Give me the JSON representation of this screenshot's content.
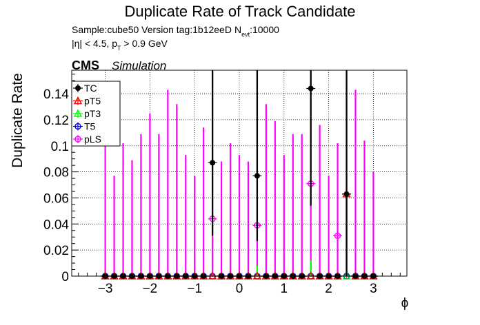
{
  "chart_data": {
    "type": "scatter",
    "title": "Duplicate Rate of Track Candidate",
    "info": {
      "sample_line": "Sample:cube50   Version tag:1b12eeD",
      "nevt_label": "N",
      "nevt_sub": "evt",
      "nevt_value": ":10000",
      "cuts_prefix": "|η| < 4.5, p",
      "cuts_sub": "T",
      "cuts_suffix": " > 0.9 GeV"
    },
    "experiment": "CMS",
    "experiment_tag": "Simulation",
    "xlabel": "ϕ",
    "ylabel": "Duplicate Rate",
    "xlim": [
      -3.75,
      3.75
    ],
    "ylim": [
      0,
      0.158
    ],
    "xticks": [
      {
        "v": -3,
        "label": "−3"
      },
      {
        "v": -2,
        "label": "−2"
      },
      {
        "v": -1,
        "label": "−1"
      },
      {
        "v": 0,
        "label": "0"
      },
      {
        "v": 1,
        "label": "1"
      },
      {
        "v": 2,
        "label": "2"
      },
      {
        "v": 3,
        "label": "3"
      }
    ],
    "yticks": [
      {
        "v": 0,
        "label": "0"
      },
      {
        "v": 0.02,
        "label": "0.02"
      },
      {
        "v": 0.04,
        "label": "0.04"
      },
      {
        "v": 0.06,
        "label": "0.06"
      },
      {
        "v": 0.08,
        "label": "0.08"
      },
      {
        "v": 0.1,
        "label": "0.1"
      },
      {
        "v": 0.12,
        "label": "0.12"
      },
      {
        "v": 0.14,
        "label": "0.14"
      }
    ],
    "grid": true,
    "legend_position": "top-left",
    "bin_centers": [
      -3.0,
      -2.8,
      -2.6,
      -2.4,
      -2.2,
      -2.0,
      -1.8,
      -1.6,
      -1.4,
      -1.2,
      -1.0,
      -0.8,
      -0.6,
      -0.4,
      -0.2,
      0.0,
      0.2,
      0.4,
      0.6,
      0.8,
      1.0,
      1.2,
      1.4,
      1.6,
      1.8,
      2.0,
      2.2,
      2.4,
      2.6,
      2.8,
      3.0
    ],
    "series": [
      {
        "name": "TC",
        "color": "#000000",
        "marker": "filled-circle",
        "values": [
          0,
          0,
          0,
          0,
          0,
          0,
          0,
          0,
          0,
          0,
          0,
          0,
          0.087,
          0,
          0,
          0,
          0,
          0.077,
          0,
          0,
          0,
          0,
          0,
          0.144,
          0,
          0,
          0,
          0.063,
          0,
          0,
          0
        ],
        "err_up": [
          0,
          0,
          0,
          0,
          0,
          0,
          0,
          0,
          0,
          0,
          0,
          0,
          0.08,
          0,
          0,
          0,
          0,
          0.09,
          0,
          0,
          0,
          0,
          0,
          0.03,
          0,
          0,
          0,
          0.1,
          0,
          0,
          0
        ],
        "err_down": [
          0,
          0,
          0,
          0,
          0,
          0,
          0,
          0,
          0,
          0,
          0,
          0,
          0.056,
          0,
          0,
          0,
          0,
          0.05,
          0,
          0,
          0,
          0,
          0,
          0.09,
          0,
          0,
          0,
          0.063,
          0,
          0,
          0
        ]
      },
      {
        "name": "pT5",
        "color": "#ff0000",
        "marker": "open-triangle",
        "values": [
          0,
          0,
          0,
          0,
          0,
          0,
          0,
          0,
          0,
          0,
          0,
          0,
          0,
          0,
          0,
          0,
          0,
          0,
          0,
          0,
          0,
          0,
          0,
          0,
          0,
          0,
          0,
          0.063,
          0,
          0,
          0
        ],
        "err_up": [
          0,
          0,
          0,
          0,
          0,
          0,
          0,
          0,
          0,
          0,
          0,
          0,
          0,
          0,
          0,
          0,
          0,
          0,
          0,
          0,
          0,
          0,
          0,
          0,
          0,
          0,
          0,
          0.1,
          0,
          0,
          0
        ],
        "err_down": [
          0,
          0,
          0,
          0,
          0,
          0,
          0,
          0,
          0,
          0,
          0,
          0,
          0,
          0,
          0,
          0,
          0,
          0,
          0,
          0,
          0,
          0,
          0,
          0,
          0,
          0,
          0,
          0.063,
          0,
          0,
          0
        ]
      },
      {
        "name": "pT3",
        "color": "#00ff00",
        "marker": "open-triangle",
        "values": [
          0,
          0,
          0,
          0,
          0,
          0,
          0,
          0,
          0,
          0,
          0,
          0,
          0,
          0,
          0,
          0,
          0,
          0,
          0,
          0,
          0,
          0,
          0,
          0,
          0,
          0,
          0,
          0,
          0,
          0,
          0
        ],
        "err_up": [
          0,
          0,
          0,
          0,
          0,
          0,
          0,
          0,
          0,
          0,
          0,
          0,
          0,
          0,
          0,
          0,
          0,
          0.008,
          0,
          0,
          0,
          0,
          0,
          0.012,
          0,
          0,
          0,
          0,
          0,
          0,
          0
        ],
        "err_down": [
          0,
          0,
          0,
          0,
          0,
          0,
          0,
          0,
          0,
          0,
          0,
          0,
          0,
          0,
          0,
          0,
          0,
          0,
          0,
          0,
          0,
          0,
          0,
          0,
          0,
          0,
          0,
          0,
          0,
          0,
          0
        ]
      },
      {
        "name": "T5",
        "color": "#0000ff",
        "marker": "open-circle",
        "values": [
          0,
          0,
          0,
          0,
          0,
          0,
          0,
          0,
          0,
          0,
          0,
          0,
          0,
          0,
          0,
          0,
          0,
          0,
          0,
          0,
          0,
          0,
          0,
          0,
          0,
          0,
          0,
          0,
          0,
          0,
          0
        ],
        "err_up": [
          0,
          0,
          0,
          0,
          0,
          0,
          0,
          0,
          0,
          0,
          0,
          0,
          0,
          0,
          0,
          0,
          0,
          0,
          0,
          0,
          0,
          0,
          0,
          0,
          0,
          0,
          0,
          0,
          0,
          0,
          0
        ],
        "err_down": [
          0,
          0,
          0,
          0,
          0,
          0,
          0,
          0,
          0,
          0,
          0,
          0,
          0,
          0,
          0,
          0,
          0,
          0,
          0,
          0,
          0,
          0,
          0,
          0,
          0,
          0,
          0,
          0,
          0,
          0,
          0
        ]
      },
      {
        "name": "pLS",
        "color": "#ff00ff",
        "marker": "open-circle-cross",
        "values": [
          0,
          0,
          0,
          0,
          0,
          0,
          0,
          0,
          0,
          0,
          0,
          0,
          0.044,
          0,
          0,
          0,
          0,
          0.039,
          0,
          0,
          0,
          0,
          0,
          0.071,
          0,
          0,
          0.031,
          0,
          0,
          0,
          0
        ],
        "err_up": [
          0.102,
          0.077,
          0.102,
          0.089,
          0.109,
          0.125,
          0.109,
          0.143,
          0.132,
          0.093,
          0.077,
          0.114,
          0.114,
          0.088,
          0.102,
          0.093,
          0.088,
          0.119,
          0.132,
          0.119,
          0.093,
          0.109,
          0.109,
          0.087,
          0.116,
          0.077,
          0.071,
          0.06,
          0.143,
          0.104,
          0.08
        ],
        "err_down": [
          0,
          0,
          0,
          0,
          0,
          0,
          0,
          0,
          0,
          0,
          0,
          0,
          0.044,
          0,
          0,
          0,
          0,
          0.039,
          0,
          0,
          0,
          0,
          0,
          0.071,
          0,
          0,
          0.031,
          0,
          0,
          0,
          0
        ]
      }
    ]
  }
}
